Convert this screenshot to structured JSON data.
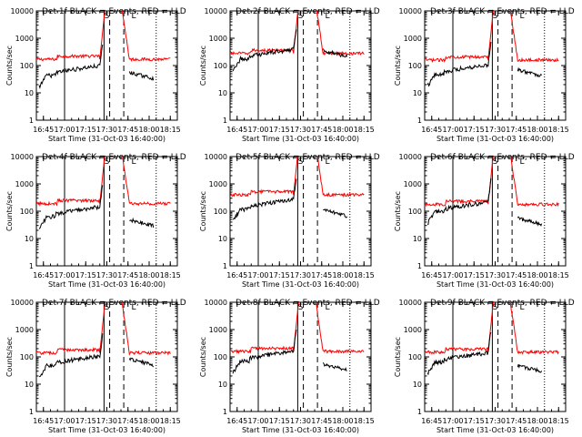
{
  "chart_data": {
    "type": "line",
    "common": {
      "ylabel": "Counts/sec",
      "xlabel": "Start Time (31-Oct-03 16:40:00)",
      "x_ticks": [
        "16:45",
        "17:00",
        "17:15",
        "17:30",
        "17:45",
        "18:00",
        "18:15"
      ],
      "x_tick_minutes": [
        5,
        20,
        35,
        50,
        65,
        80,
        95
      ],
      "x_range_minutes": [
        0,
        100
      ],
      "y_scale": "log",
      "y_range": [
        1,
        10000
      ],
      "y_ticks": [
        "1",
        "10",
        "100",
        "1000",
        "10000"
      ],
      "legend_text": "BLACK = Events, RED = LLD",
      "series_colors": {
        "events": "#000000",
        "lld": "#ff0000"
      },
      "marker_labels": [
        "S",
        "L"
      ],
      "solid_vlines": [
        20,
        48
      ],
      "dashed_vlines": [
        52,
        62
      ],
      "dotted_vlines": [
        85
      ]
    },
    "panels": [
      {
        "detector": "Det 1f",
        "events_base": 55,
        "lld_base": 170,
        "events_max_min": 47,
        "events_resume_min": 66,
        "events_end": 40
      },
      {
        "detector": "Det 2f",
        "events_base": 220,
        "lld_base": 280,
        "events_max_min": 47,
        "events_resume_min": 66,
        "events_end": 260
      },
      {
        "detector": "Det 3f",
        "events_base": 60,
        "lld_base": 160,
        "events_max_min": 47,
        "events_resume_min": 66,
        "events_end": 50
      },
      {
        "detector": "Det 4f",
        "events_base": 80,
        "lld_base": 190,
        "events_max_min": 47,
        "events_resume_min": 66,
        "events_end": 35
      },
      {
        "detector": "Det 5f",
        "events_base": 150,
        "lld_base": 400,
        "events_max_min": 47,
        "events_resume_min": 66,
        "events_end": 80
      },
      {
        "detector": "Det 6f",
        "events_base": 120,
        "lld_base": 180,
        "events_max_min": 47,
        "events_resume_min": 66,
        "events_end": 40
      },
      {
        "detector": "Det 7f",
        "events_base": 60,
        "lld_base": 140,
        "events_max_min": 47,
        "events_resume_min": 66,
        "events_end": 60
      },
      {
        "detector": "Det 8f",
        "events_base": 90,
        "lld_base": 160,
        "events_max_min": 47,
        "events_resume_min": 66,
        "events_end": 40
      },
      {
        "detector": "Det 9f",
        "events_base": 80,
        "lld_base": 150,
        "events_max_min": 47,
        "events_resume_min": 66,
        "events_end": 35
      }
    ]
  }
}
